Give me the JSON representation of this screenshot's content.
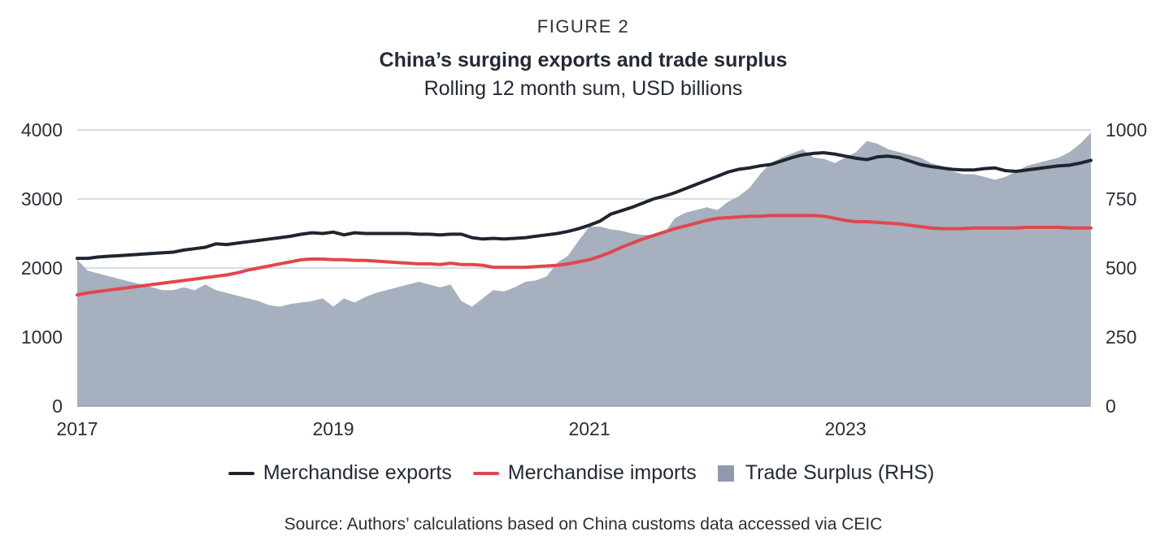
{
  "figure_label": "FIGURE 2",
  "source": "Source: Authors’ calculations based on China customs data accessed via CEIC",
  "chart_data": {
    "type": "line",
    "title": "China’s surging exports and trade surplus",
    "subtitle": "Rolling 12 month sum, USD billions",
    "x_start_year": 2017,
    "x_ticks": [
      "2017",
      "2019",
      "2021",
      "2023"
    ],
    "xlim": [
      "2017-01",
      "2024-12"
    ],
    "ylim_left": [
      0,
      4000
    ],
    "yticks_left": [
      0,
      1000,
      2000,
      3000,
      4000
    ],
    "ylim_right": [
      0,
      1000
    ],
    "yticks_right": [
      0,
      250,
      500,
      750,
      1000
    ],
    "grid": true,
    "legend_position": "bottom",
    "x": [
      "2017-01",
      "2017-02",
      "2017-03",
      "2017-04",
      "2017-05",
      "2017-06",
      "2017-07",
      "2017-08",
      "2017-09",
      "2017-10",
      "2017-11",
      "2017-12",
      "2018-01",
      "2018-02",
      "2018-03",
      "2018-04",
      "2018-05",
      "2018-06",
      "2018-07",
      "2018-08",
      "2018-09",
      "2018-10",
      "2018-11",
      "2018-12",
      "2019-01",
      "2019-02",
      "2019-03",
      "2019-04",
      "2019-05",
      "2019-06",
      "2019-07",
      "2019-08",
      "2019-09",
      "2019-10",
      "2019-11",
      "2019-12",
      "2020-01",
      "2020-02",
      "2020-03",
      "2020-04",
      "2020-05",
      "2020-06",
      "2020-07",
      "2020-08",
      "2020-09",
      "2020-10",
      "2020-11",
      "2020-12",
      "2021-01",
      "2021-02",
      "2021-03",
      "2021-04",
      "2021-05",
      "2021-06",
      "2021-07",
      "2021-08",
      "2021-09",
      "2021-10",
      "2021-11",
      "2021-12",
      "2022-01",
      "2022-02",
      "2022-03",
      "2022-04",
      "2022-05",
      "2022-06",
      "2022-07",
      "2022-08",
      "2022-09",
      "2022-10",
      "2022-11",
      "2022-12",
      "2023-01",
      "2023-02",
      "2023-03",
      "2023-04",
      "2023-05",
      "2023-06",
      "2023-07",
      "2023-08",
      "2023-09",
      "2023-10",
      "2023-11",
      "2023-12",
      "2024-01",
      "2024-02",
      "2024-03",
      "2024-04",
      "2024-05",
      "2024-06",
      "2024-07",
      "2024-08",
      "2024-09",
      "2024-10",
      "2024-11",
      "2024-12"
    ],
    "series": [
      {
        "name": "Merchandise exports",
        "axis": "left",
        "color": "#1f2530",
        "kind": "line",
        "values": [
          2140,
          2140,
          2160,
          2170,
          2180,
          2190,
          2200,
          2210,
          2220,
          2230,
          2260,
          2280,
          2300,
          2350,
          2340,
          2360,
          2380,
          2400,
          2420,
          2440,
          2460,
          2490,
          2510,
          2500,
          2520,
          2480,
          2510,
          2500,
          2500,
          2500,
          2500,
          2500,
          2490,
          2490,
          2480,
          2490,
          2490,
          2440,
          2420,
          2430,
          2420,
          2430,
          2440,
          2460,
          2480,
          2500,
          2530,
          2570,
          2620,
          2680,
          2780,
          2830,
          2880,
          2940,
          3000,
          3040,
          3090,
          3150,
          3210,
          3270,
          3330,
          3390,
          3430,
          3450,
          3480,
          3500,
          3550,
          3600,
          3640,
          3660,
          3670,
          3650,
          3620,
          3590,
          3570,
          3610,
          3620,
          3600,
          3550,
          3500,
          3470,
          3450,
          3430,
          3420,
          3420,
          3440,
          3450,
          3410,
          3400,
          3420,
          3440,
          3460,
          3480,
          3490,
          3520,
          3560
        ]
      },
      {
        "name": "Merchandise imports",
        "axis": "left",
        "color": "#e0474c",
        "kind": "line",
        "values": [
          1610,
          1640,
          1660,
          1680,
          1700,
          1720,
          1740,
          1760,
          1780,
          1800,
          1820,
          1840,
          1860,
          1880,
          1900,
          1930,
          1970,
          2000,
          2030,
          2060,
          2090,
          2120,
          2130,
          2130,
          2120,
          2120,
          2110,
          2110,
          2100,
          2090,
          2080,
          2070,
          2060,
          2060,
          2050,
          2070,
          2050,
          2050,
          2040,
          2010,
          2010,
          2010,
          2010,
          2020,
          2030,
          2040,
          2060,
          2090,
          2120,
          2170,
          2230,
          2300,
          2360,
          2420,
          2470,
          2520,
          2570,
          2610,
          2650,
          2690,
          2720,
          2730,
          2740,
          2750,
          2750,
          2760,
          2760,
          2760,
          2760,
          2760,
          2750,
          2720,
          2690,
          2670,
          2670,
          2660,
          2650,
          2640,
          2620,
          2600,
          2580,
          2570,
          2570,
          2570,
          2580,
          2580,
          2580,
          2580,
          2580,
          2590,
          2590,
          2590,
          2590,
          2580,
          2580,
          2580
        ]
      },
      {
        "name": "Trade Surplus (RHS)",
        "axis": "right",
        "color": "#a6b0bf",
        "kind": "area",
        "values": [
          530,
          490,
          480,
          470,
          460,
          450,
          440,
          430,
          420,
          420,
          430,
          420,
          440,
          420,
          410,
          400,
          390,
          380,
          365,
          360,
          370,
          375,
          380,
          390,
          360,
          390,
          375,
          395,
          410,
          420,
          430,
          440,
          450,
          440,
          430,
          440,
          380,
          360,
          390,
          420,
          415,
          430,
          450,
          455,
          470,
          520,
          545,
          600,
          650,
          650,
          640,
          635,
          625,
          620,
          620,
          625,
          680,
          700,
          710,
          720,
          710,
          740,
          760,
          790,
          840,
          880,
          900,
          915,
          930,
          900,
          895,
          880,
          900,
          920,
          960,
          950,
          930,
          920,
          910,
          900,
          880,
          870,
          850,
          840,
          840,
          830,
          820,
          830,
          850,
          870,
          880,
          890,
          900,
          920,
          950,
          990
        ]
      }
    ]
  }
}
